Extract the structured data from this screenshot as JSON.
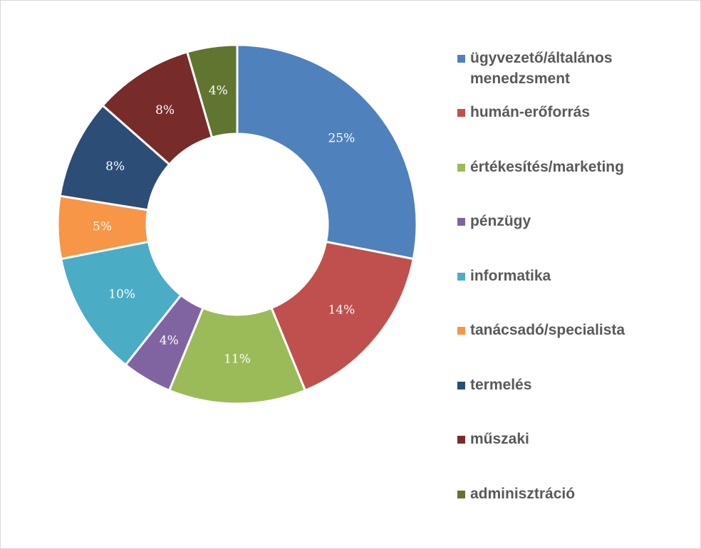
{
  "chart_data": {
    "type": "pie",
    "variant": "donut",
    "title": "",
    "categories": [
      "ügyvezető/általános menedzsment",
      "humán-erőforrás",
      "értékesítés/marketing",
      "pénzügy",
      "informatika",
      "tanácsadó/specialista",
      "termelés",
      "műszaki",
      "adminisztráció"
    ],
    "values": [
      25,
      14,
      11,
      4,
      10,
      5,
      8,
      8,
      4
    ],
    "labels": [
      "25%",
      "14%",
      "11%",
      "4%",
      "10%",
      "5%",
      "8%",
      "8%",
      "4%"
    ],
    "colors": [
      "#4f81bd",
      "#c0504d",
      "#9bbb59",
      "#8064a2",
      "#4bacc6",
      "#f79646",
      "#2c4d75",
      "#772c2a",
      "#5f7530"
    ],
    "legend_position": "right"
  }
}
